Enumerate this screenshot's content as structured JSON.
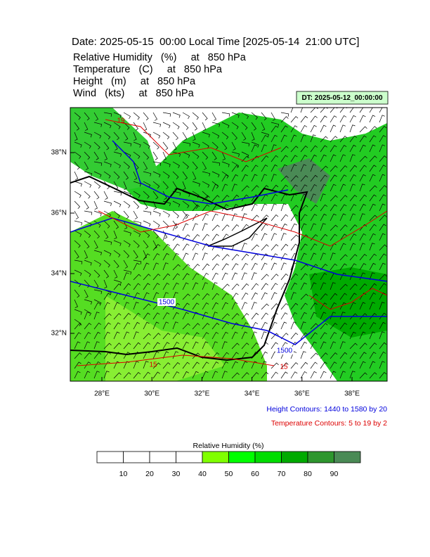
{
  "title": "Date: 2025-05-15  00:00 Local Time [2025-05-14  21:00 UTC]",
  "fields": [
    "Relative Humidity   (%)     at   850 hPa",
    "Temperature   (C)     at   850 hPa",
    "Height   (m)     at   850 hPa",
    "Wind   (kts)     at   850 hPa"
  ],
  "dt_label": "DT: 2025-05-12_00:00:00",
  "lat_labels": [
    "38°N",
    "36°N",
    "34°N",
    "32°N"
  ],
  "lon_labels": [
    "28°E",
    "30°E",
    "32°E",
    "34°E",
    "36°E",
    "38°E"
  ],
  "contour_labels": [
    "1500",
    "1500",
    "19",
    "15",
    "15"
  ],
  "height_note": "Height Contours: 1440 to 1580 by 20",
  "temperature_note": "Temperature Contours: 5 to 19 by 2",
  "colorbar": {
    "title": "Relative Humidity  (%)",
    "levels": [
      10,
      20,
      30,
      40,
      50,
      60,
      70,
      80,
      90
    ],
    "colors": [
      "#ffffff",
      "#ffffff",
      "#ffffff",
      "#ffffff",
      "#80ff00",
      "#00ff00",
      "#00dd00",
      "#00aa00",
      "#2e962e",
      "#4a8a55"
    ]
  }
}
